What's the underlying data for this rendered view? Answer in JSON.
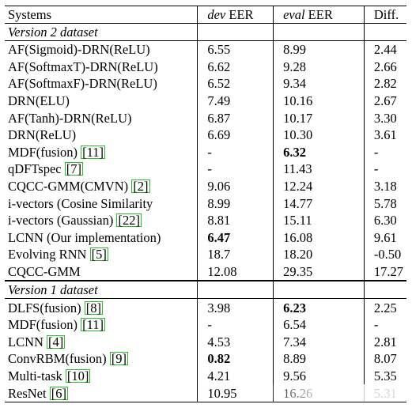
{
  "header": {
    "systems": "Systems",
    "dev_prefix": "dev",
    "dev_suffix": " EER",
    "eval_prefix": "eval",
    "eval_suffix": " EER",
    "diff": "Diff."
  },
  "sections": [
    {
      "title": "Version 2 dataset",
      "rows": [
        {
          "system": "AF(Sigmoid)-DRN(ReLU)",
          "ref": "",
          "dev": "6.55",
          "eval": "8.99",
          "diff": "2.44"
        },
        {
          "system": "AF(SoftmaxT)-DRN(ReLU)",
          "ref": "",
          "dev": "6.62",
          "eval": "9.28",
          "diff": "2.66"
        },
        {
          "system": "AF(SoftmaxF)-DRN(ReLU)",
          "ref": "",
          "dev": "6.52",
          "eval": "9.34",
          "diff": "2.82"
        },
        {
          "system": "DRN(ELU)",
          "ref": "",
          "dev": "7.49",
          "eval": "10.16",
          "diff": "2.67"
        },
        {
          "system": "AF(Tanh)-DRN(ReLU)",
          "ref": "",
          "dev": "6.87",
          "eval": "10.17",
          "diff": "3.30"
        },
        {
          "system": "DRN(ReLU)",
          "ref": "",
          "dev": "6.69",
          "eval": "10.30",
          "diff": "3.61"
        },
        {
          "system": "MDF(fusion) ",
          "ref": "[11]",
          "dev": "-",
          "eval": "6.32",
          "diff": "-",
          "eval_bold": true
        },
        {
          "system": "qDFTspec ",
          "ref": "[7]",
          "dev": "-",
          "eval": "11.43",
          "diff": "-"
        },
        {
          "system": "CQCC-GMM(CMVN) ",
          "ref": "[2]",
          "dev": "9.06",
          "eval": "12.24",
          "diff": "3.18"
        },
        {
          "system": "i-vectors (Cosine Similarity",
          "ref": "",
          "dev": "8.99",
          "eval": "14.77",
          "diff": "5.78"
        },
        {
          "system": "i-vectors (Gaussian) ",
          "ref": "[22]",
          "dev": "8.81",
          "eval": "15.11",
          "diff": "6.30"
        },
        {
          "system": "LCNN (Our implementation)",
          "ref": "",
          "dev": "6.47",
          "eval": "16.08",
          "diff": "9.61",
          "dev_bold": true
        },
        {
          "system": "Evolving RNN ",
          "ref": "[5]",
          "dev": "18.7",
          "eval": "18.20",
          "diff": "-0.50"
        },
        {
          "system": "CQCC-GMM",
          "ref": "",
          "dev": "12.08",
          "eval": "29.35",
          "diff": "17.27"
        }
      ]
    },
    {
      "title": "Version 1 dataset",
      "rows": [
        {
          "system": "DLFS(fusion) ",
          "ref": "[8]",
          "dev": "3.98",
          "eval": "6.23",
          "diff": "2.25",
          "eval_bold": true
        },
        {
          "system": "MDF(fusion) ",
          "ref": "[11]",
          "dev": "-",
          "eval": "6.54",
          "diff": "-"
        },
        {
          "system": "LCNN ",
          "ref": "[4]",
          "dev": "4.53",
          "eval": "7.34",
          "diff": "2.81"
        },
        {
          "system": "ConvRBM(fusion) ",
          "ref": "[9]",
          "dev": "0.82",
          "eval": "8.89",
          "diff": "8.07",
          "dev_bold": true
        },
        {
          "system": "Multi-task ",
          "ref": "[10]",
          "dev": "4.21",
          "eval": "9.56",
          "diff": "5.35"
        },
        {
          "system": "ResNet ",
          "ref": "[6]",
          "dev": "10.95",
          "eval": "16.26",
          "diff": "5.31"
        }
      ]
    }
  ]
}
